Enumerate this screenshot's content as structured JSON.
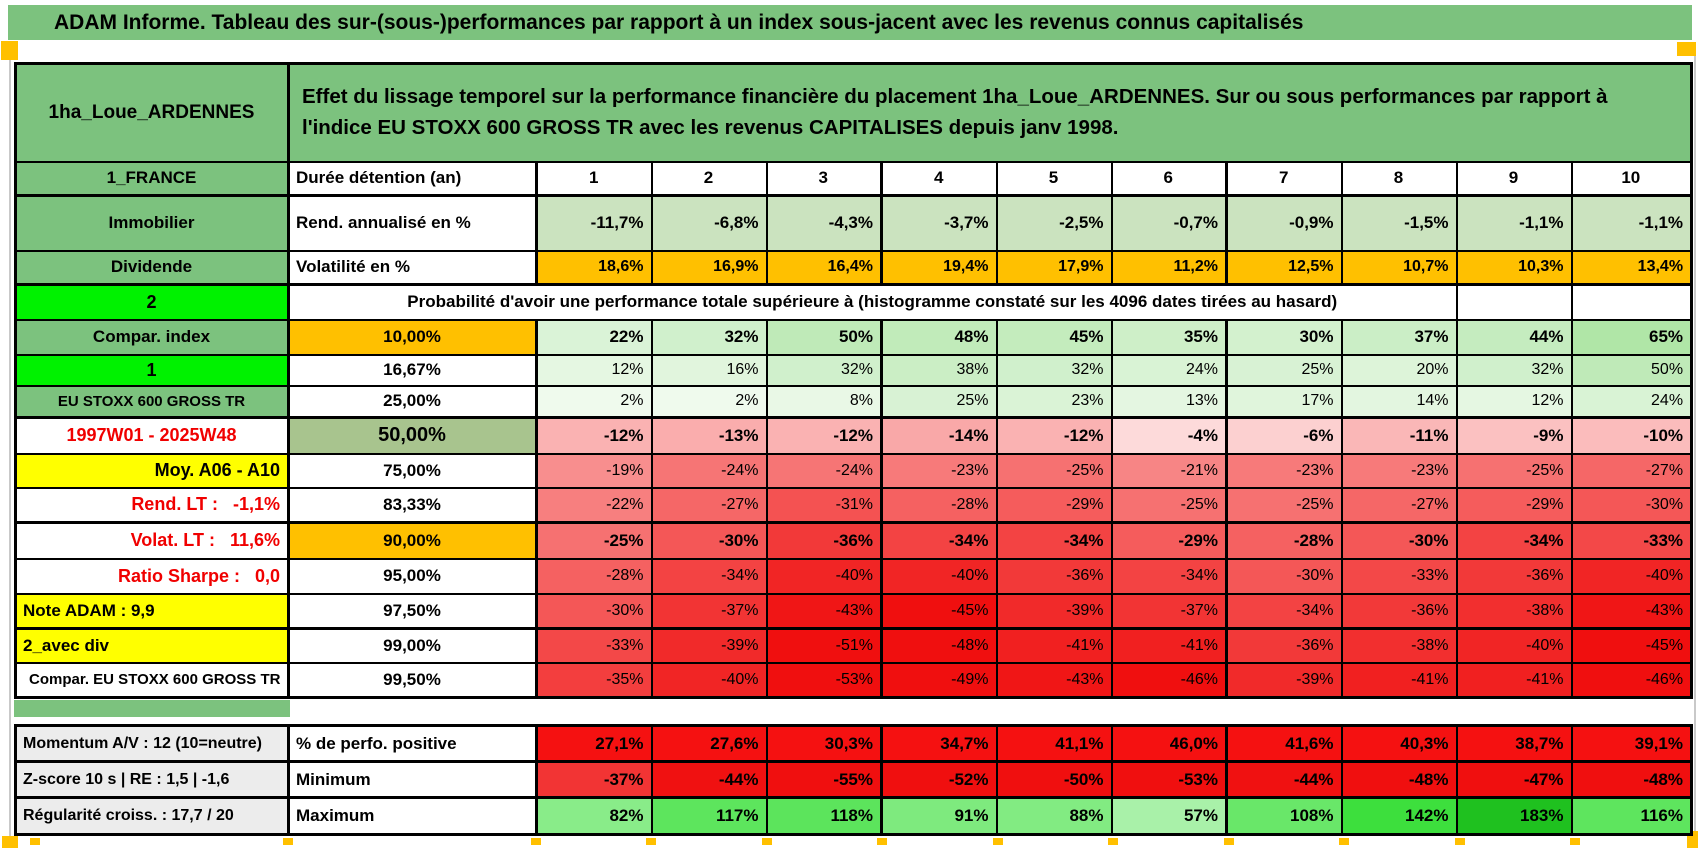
{
  "title": "ADAM Informe. Tableau des sur-(sous-)performances par rapport à un index sous-jacent avec les revenus connus capitalisés",
  "palette": {
    "table_green": "#7cc27e",
    "bright_green": "#00f200",
    "orange": "#ffc000",
    "yellow": "#ffff00",
    "pale_green": "#cbe3bf",
    "mid_green_50": "#a8c48e",
    "solid_red": "#f51111",
    "red_text": "#f00000",
    "gray_label": "#ececec"
  },
  "header": {
    "placement": "1ha_Loue_ARDENNES",
    "description": "Effet du lissage temporel sur la performance financière du placement 1ha_Loue_ARDENNES. Sur ou sous performances par rapport à l'indice EU STOXX 600 GROSS TR avec les revenus CAPITALISES depuis janv 1998."
  },
  "year_columns": [
    "1",
    "2",
    "3",
    "4",
    "5",
    "6",
    "7",
    "8",
    "9",
    "10"
  ],
  "main_rows": [
    {
      "id": "duree",
      "left": "1_FRANCE",
      "left_kind": "green",
      "label": "Durée détention (an)",
      "label_kind": "white_left",
      "kind": "years",
      "values": [
        "1",
        "2",
        "3",
        "4",
        "5",
        "6",
        "7",
        "8",
        "9",
        "10"
      ]
    },
    {
      "id": "rend_annualise",
      "left": "Immobilier",
      "left_kind": "green",
      "label": "Rend. annualisé en %",
      "label_kind": "white_left",
      "kind": "pale_green",
      "values": [
        "-11,7%",
        "-6,8%",
        "-4,3%",
        "-3,7%",
        "-2,5%",
        "-0,7%",
        "-0,9%",
        "-1,5%",
        "-1,1%",
        "-1,1%"
      ]
    },
    {
      "id": "volatilite",
      "left": "Dividende",
      "left_kind": "green",
      "label": "Volatilité en %",
      "label_kind": "white_left",
      "kind": "orange_vals",
      "values": [
        "18,6%",
        "16,9%",
        "16,4%",
        "19,4%",
        "17,9%",
        "11,2%",
        "12,5%",
        "10,7%",
        "10,3%",
        "13,4%"
      ]
    },
    {
      "id": "proba",
      "left": "2",
      "left_kind": "bright",
      "span_label": "Probabilité d'avoir une performance totale supérieure à (histogramme constaté sur les 4096 dates tirées au hasard)",
      "kind": "span"
    },
    {
      "id": "p10",
      "left": "Compar. index",
      "left_kind": "green",
      "label": "10,00%",
      "label_kind": "pct_orange",
      "kind": "green_bold",
      "values": [
        "22%",
        "32%",
        "50%",
        "48%",
        "45%",
        "35%",
        "30%",
        "37%",
        "44%",
        "65%"
      ]
    },
    {
      "id": "p16_67",
      "left": "1",
      "left_kind": "bright",
      "label": "16,67%",
      "label_kind": "pct",
      "kind": "green",
      "values": [
        "12%",
        "16%",
        "32%",
        "38%",
        "32%",
        "24%",
        "25%",
        "20%",
        "32%",
        "50%"
      ]
    },
    {
      "id": "p25",
      "left": "EU STOXX 600 GROSS TR",
      "left_kind": "green_small",
      "label": "25,00%",
      "label_kind": "pct",
      "kind": "green",
      "values": [
        "2%",
        "2%",
        "8%",
        "25%",
        "23%",
        "13%",
        "17%",
        "14%",
        "12%",
        "24%"
      ]
    },
    {
      "id": "p50",
      "left": "1997W01 - 2025W48",
      "left_kind": "red_center",
      "label": "50,00%",
      "label_kind": "pct_green_big",
      "kind": "red_bold",
      "values": [
        "-12%",
        "-13%",
        "-12%",
        "-14%",
        "-12%",
        "-4%",
        "-6%",
        "-11%",
        "-9%",
        "-10%"
      ]
    },
    {
      "id": "p75",
      "left": "Moy. A06 - A10",
      "left_kind": "yellow_right",
      "label": "75,00%",
      "label_kind": "pct",
      "kind": "red",
      "values": [
        "-19%",
        "-24%",
        "-24%",
        "-23%",
        "-25%",
        "-21%",
        "-23%",
        "-23%",
        "-25%",
        "-27%"
      ]
    },
    {
      "id": "p83_33",
      "left": "Rend. LT :   -1,1%",
      "left_kind": "red_right",
      "label": "83,33%",
      "label_kind": "pct",
      "kind": "red",
      "values": [
        "-22%",
        "-27%",
        "-31%",
        "-28%",
        "-29%",
        "-25%",
        "-25%",
        "-27%",
        "-29%",
        "-30%"
      ]
    },
    {
      "id": "p90",
      "left": "Volat. LT :   11,6%",
      "left_kind": "red_right",
      "label": "90,00%",
      "label_kind": "pct_orange",
      "kind": "red_bold",
      "values": [
        "-25%",
        "-30%",
        "-36%",
        "-34%",
        "-34%",
        "-29%",
        "-28%",
        "-30%",
        "-34%",
        "-33%"
      ]
    },
    {
      "id": "p95",
      "left": "Ratio Sharpe :   0,0",
      "left_kind": "red_right",
      "label": "95,00%",
      "label_kind": "pct",
      "kind": "red",
      "values": [
        "-28%",
        "-34%",
        "-40%",
        "-40%",
        "-36%",
        "-34%",
        "-30%",
        "-33%",
        "-36%",
        "-40%"
      ]
    },
    {
      "id": "p97_5",
      "left": "Note ADAM : 9,9",
      "left_kind": "yellow_left",
      "label": "97,50%",
      "label_kind": "pct",
      "kind": "red",
      "values": [
        "-30%",
        "-37%",
        "-43%",
        "-45%",
        "-39%",
        "-37%",
        "-34%",
        "-36%",
        "-38%",
        "-43%"
      ]
    },
    {
      "id": "p99",
      "left": "2_avec div",
      "left_kind": "yellow_left",
      "label": "99,00%",
      "label_kind": "pct",
      "kind": "red",
      "values": [
        "-33%",
        "-39%",
        "-51%",
        "-48%",
        "-41%",
        "-41%",
        "-36%",
        "-38%",
        "-40%",
        "-45%"
      ]
    },
    {
      "id": "p99_5",
      "left": "Compar. EU STOXX 600 GROSS TR",
      "left_kind": "plain_small",
      "label": "99,50%",
      "label_kind": "pct",
      "kind": "red",
      "values": [
        "-35%",
        "-40%",
        "-53%",
        "-49%",
        "-43%",
        "-46%",
        "-39%",
        "-41%",
        "-41%",
        "-46%"
      ]
    }
  ],
  "bottom_rows": [
    {
      "id": "perfo_pos",
      "left": "Momentum A/V : 12 (10=neutre)",
      "left_kind": "gray",
      "label": "% de perfo. positive",
      "label_kind": "white_left",
      "kind": "solid_red",
      "values": [
        "27,1%",
        "27,6%",
        "30,3%",
        "34,7%",
        "41,1%",
        "46,0%",
        "41,6%",
        "40,3%",
        "38,7%",
        "39,1%"
      ]
    },
    {
      "id": "minimum",
      "left": "Z-score 10 s | RE : 1,5 | -1,6",
      "left_kind": "gray",
      "label": "Minimum",
      "label_kind": "white_left",
      "kind": "red_deep",
      "values": [
        "-37%",
        "-44%",
        "-55%",
        "-52%",
        "-50%",
        "-53%",
        "-44%",
        "-48%",
        "-47%",
        "-48%"
      ]
    },
    {
      "id": "maximum",
      "left": "Régularité croiss. : 17,7 / 20",
      "left_kind": "gray",
      "label": "Maximum",
      "label_kind": "white_left",
      "kind": "green_strong",
      "values": [
        "82%",
        "117%",
        "118%",
        "91%",
        "88%",
        "57%",
        "108%",
        "142%",
        "183%",
        "116%"
      ]
    }
  ]
}
